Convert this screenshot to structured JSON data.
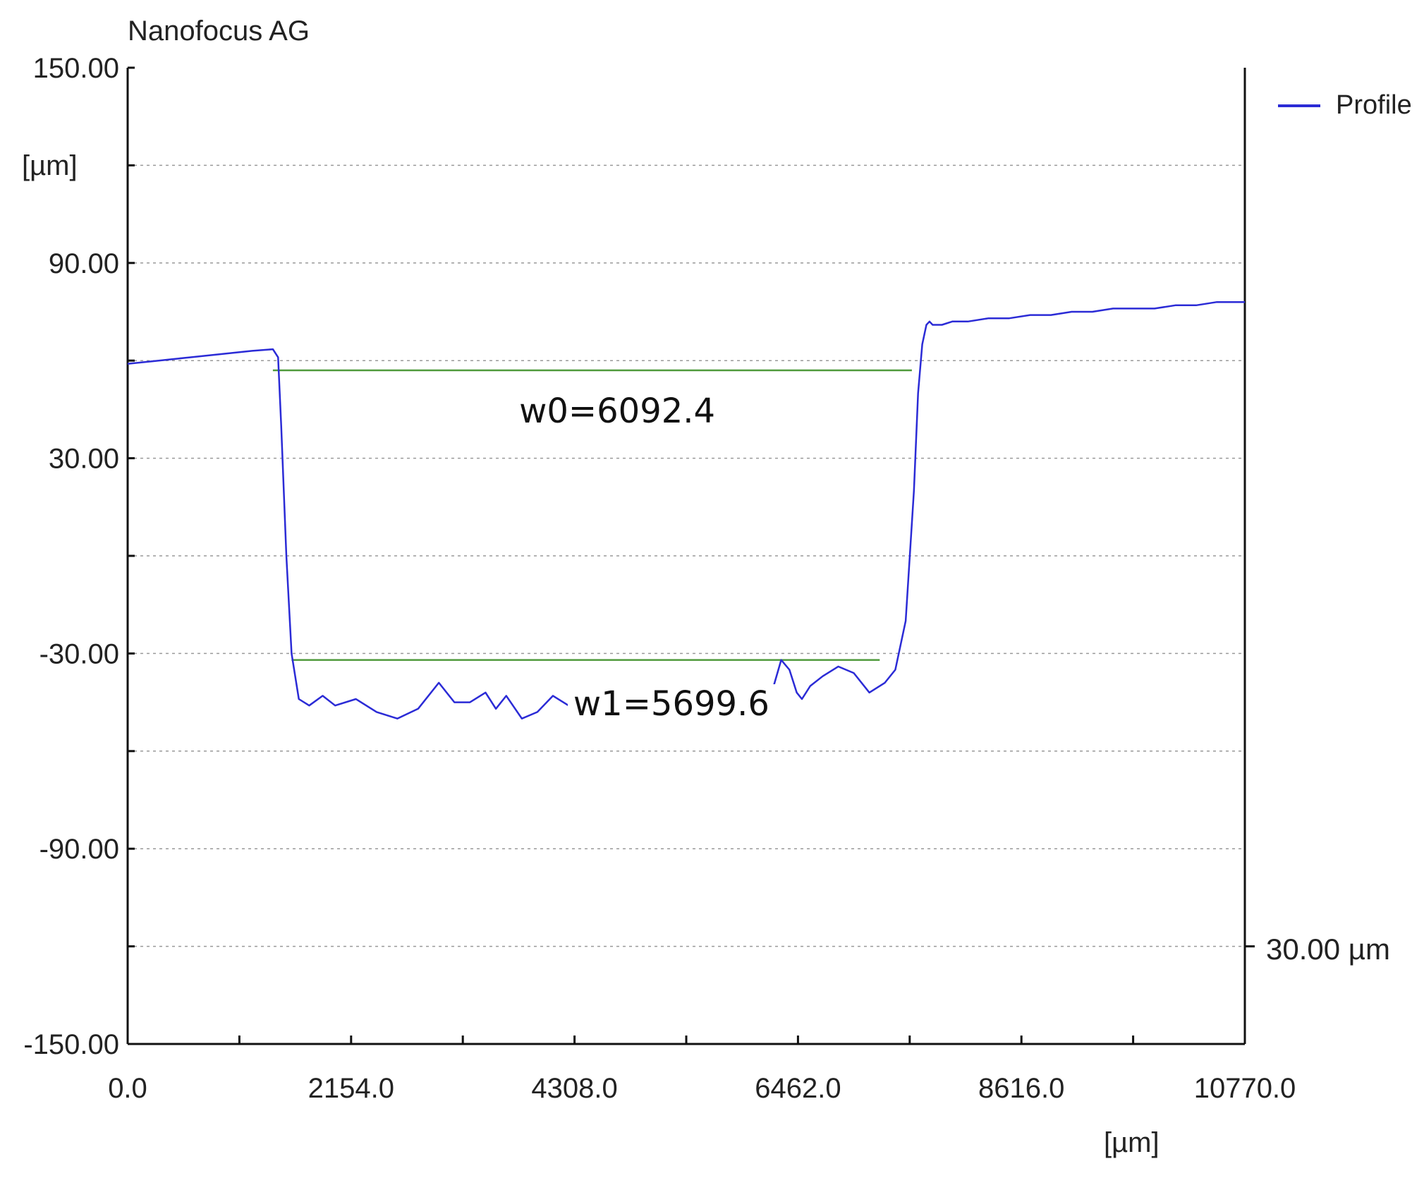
{
  "header": {
    "app_title": "Nanofocus AG"
  },
  "legend": {
    "label": "Profile",
    "color": "#2b2bd6"
  },
  "scale_bar": {
    "label": "30.00 µm"
  },
  "chart_data": {
    "type": "line",
    "title": "",
    "xlabel": "[µm]",
    "ylabel": "[µm]",
    "xlim": [
      0,
      10770
    ],
    "ylim": [
      -150,
      150
    ],
    "x_ticks": [
      "0.0",
      "2154.0",
      "4308.0",
      "6462.0",
      "8616.0",
      "10770.0"
    ],
    "y_ticks": [
      "150.00",
      "90.00",
      "30.00",
      "-30.00",
      "-90.00",
      "-150.00"
    ],
    "grid": true,
    "legend_position": "top-right",
    "series": [
      {
        "name": "Profile",
        "color": "#2b2bd6",
        "x": [
          0,
          300,
          600,
          900,
          1200,
          1400,
          1450,
          1480,
          1530,
          1580,
          1650,
          1750,
          1880,
          2000,
          2200,
          2400,
          2600,
          2800,
          3000,
          3150,
          3300,
          3450,
          3550,
          3650,
          3800,
          3950,
          4100,
          4250,
          4400,
          4550,
          4700,
          4850,
          5000,
          5150,
          5300,
          5500,
          5700,
          5900,
          6050,
          6200,
          6300,
          6380,
          6450,
          6500,
          6580,
          6700,
          6850,
          7000,
          7150,
          7300,
          7400,
          7500,
          7580,
          7620,
          7660,
          7700,
          7730,
          7760,
          7800,
          7850,
          7950,
          8100,
          8300,
          8500,
          8700,
          8900,
          9100,
          9300,
          9500,
          9700,
          9900,
          10100,
          10300,
          10500,
          10770
        ],
        "y": [
          59,
          60,
          61,
          62,
          63,
          63.5,
          61,
          40,
          0,
          -30,
          -44,
          -46,
          -43,
          -46,
          -44,
          -48,
          -50,
          -47,
          -39,
          -45,
          -45,
          -42,
          -47,
          -43,
          -50,
          -48,
          -43,
          -46,
          -44,
          -43,
          -45,
          -43,
          -43,
          -44,
          -45,
          -45,
          -44,
          -43,
          -42,
          -43,
          -32,
          -35,
          -42,
          -44,
          -40,
          -37,
          -34,
          -36,
          -42,
          -39,
          -35,
          -20,
          20,
          50,
          65,
          71,
          72,
          71,
          71,
          71,
          72,
          72,
          73,
          73,
          74,
          74,
          75,
          75,
          76,
          76,
          76,
          77,
          77,
          78,
          78
        ]
      }
    ],
    "annotations": [
      {
        "label": "w0=6092.4",
        "x_start": 1400,
        "x_end": 7560,
        "y": 57
      },
      {
        "label": "w1=5699.6",
        "x_start": 1580,
        "x_end": 7250,
        "y": -32
      }
    ]
  }
}
